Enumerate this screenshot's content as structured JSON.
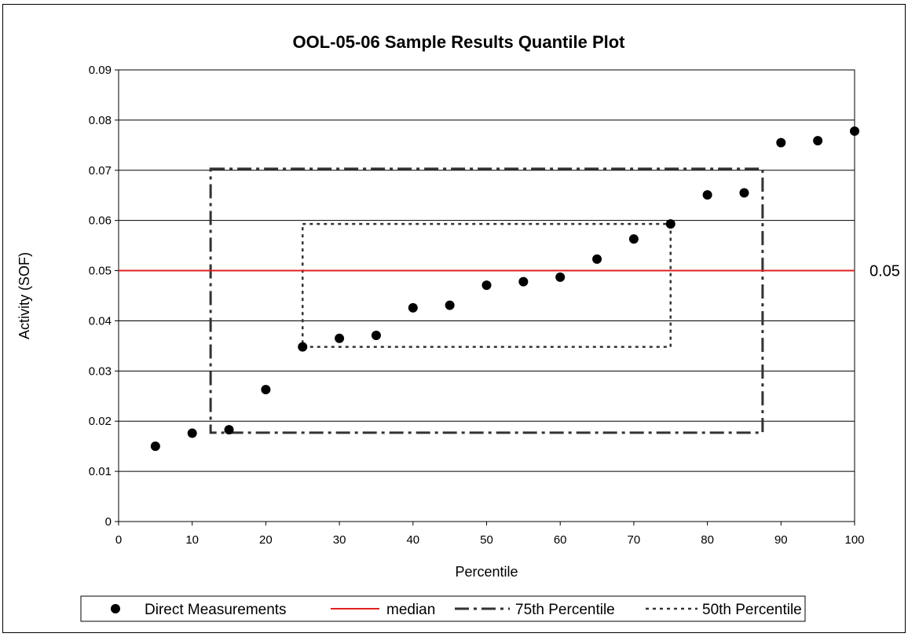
{
  "chart_data": {
    "type": "scatter",
    "title": "OOL-05-06 Sample Results Quantile Plot",
    "xlabel": "Percentile",
    "ylabel": "Activity (SOF)",
    "xlim": [
      0,
      100
    ],
    "ylim": [
      0,
      0.09
    ],
    "x_ticks": [
      "0",
      "10",
      "20",
      "30",
      "40",
      "50",
      "60",
      "70",
      "80",
      "90",
      "100"
    ],
    "y_ticks": [
      "0",
      "0.01",
      "0.02",
      "0.03",
      "0.04",
      "0.05",
      "0.06",
      "0.07",
      "0.08",
      "0.09"
    ],
    "grid": "horizontal",
    "legend_position": "bottom",
    "series": [
      {
        "name": "Direct Measurements",
        "marker": "circle",
        "color": "#000000",
        "x": [
          5,
          10,
          15,
          20,
          25,
          30,
          35,
          40,
          45,
          50,
          55,
          60,
          65,
          70,
          75,
          80,
          85,
          90,
          95,
          100
        ],
        "y": [
          0.015,
          0.0176,
          0.0183,
          0.0263,
          0.0348,
          0.0365,
          0.0371,
          0.0426,
          0.0431,
          0.0471,
          0.0478,
          0.0487,
          0.0523,
          0.0563,
          0.0593,
          0.0651,
          0.0655,
          0.0755,
          0.0759,
          0.0778
        ]
      },
      {
        "name": "median",
        "style": "solid",
        "color": "#e02020",
        "y": 0.05
      },
      {
        "name": "75th Percentile",
        "style": "dash-dot",
        "color": "#333333",
        "box": {
          "x": [
            12.5,
            87.5
          ],
          "y": [
            0.0177,
            0.0703
          ]
        }
      },
      {
        "name": "50th Percentile",
        "style": "dotted",
        "color": "#333333",
        "box": {
          "x": [
            25,
            75
          ],
          "y": [
            0.0348,
            0.0593
          ]
        }
      }
    ],
    "annotations": [
      {
        "text": "0.05",
        "y": 0.05
      }
    ]
  }
}
